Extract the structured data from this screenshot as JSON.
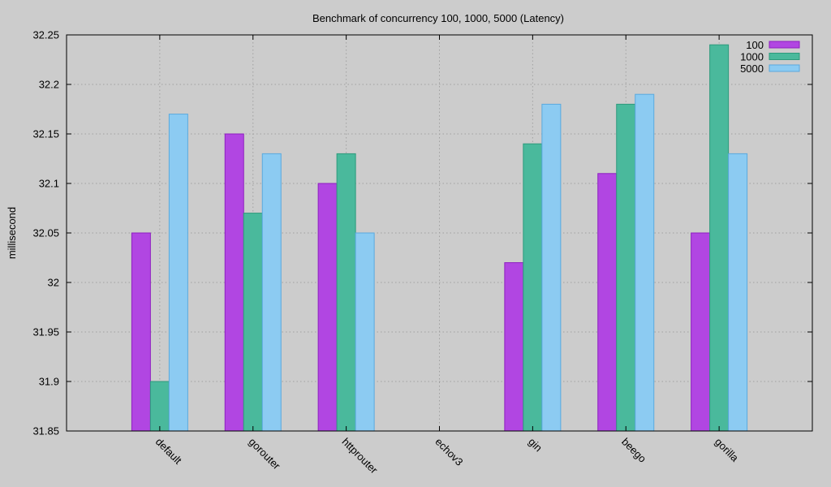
{
  "chart_data": {
    "type": "bar",
    "title": "Benchmark of concurrency 100, 1000, 5000 (Latency)",
    "xlabel": "",
    "ylabel": "millisecond",
    "categories": [
      "default",
      "gorouter",
      "httprouter",
      "echov3",
      "gin",
      "beego",
      "gorilla"
    ],
    "series": [
      {
        "name": "100",
        "color": "#b146e2",
        "stroke": "#8e1fc0",
        "values": [
          32.05,
          32.15,
          32.1,
          null,
          32.02,
          32.11,
          32.05
        ]
      },
      {
        "name": "1000",
        "color": "#4ab99c",
        "stroke": "#2d9a7c",
        "values": [
          31.9,
          32.07,
          32.13,
          null,
          32.14,
          32.18,
          32.24
        ]
      },
      {
        "name": "5000",
        "color": "#8ccbf2",
        "stroke": "#5aa9de",
        "values": [
          32.17,
          32.13,
          32.05,
          null,
          32.18,
          32.19,
          32.13
        ]
      }
    ],
    "ylim": [
      31.85,
      32.25
    ],
    "yticks": [
      "31.85",
      "31.9",
      "31.95",
      "32",
      "32.05",
      "32.1",
      "32.15",
      "32.2",
      "32.25"
    ],
    "grid": true,
    "legend_position": "top-right"
  }
}
